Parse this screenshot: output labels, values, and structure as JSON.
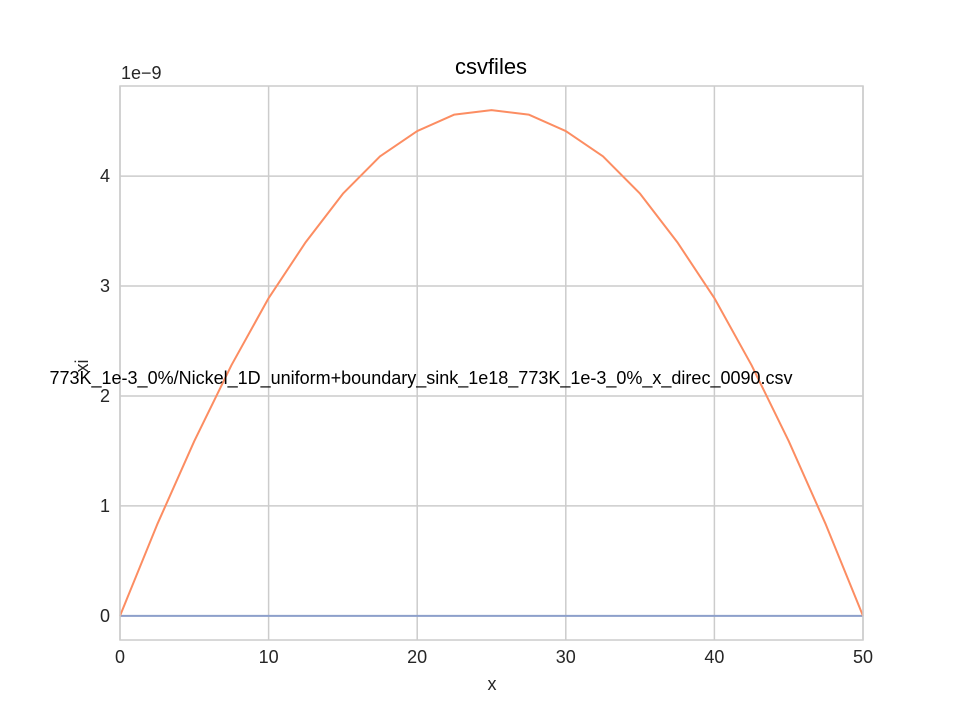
{
  "chart_data": {
    "type": "line",
    "title": "csvfiles",
    "xlabel": "x",
    "ylabel": "xi",
    "y_scale_label": "1e−9",
    "xlim": [
      0,
      50
    ],
    "ylim": [
      -0.22,
      4.82
    ],
    "grid": true,
    "legend_placement": "center",
    "x_ticks": [
      0,
      10,
      20,
      30,
      40,
      50
    ],
    "y_ticks": [
      0,
      1,
      2,
      3,
      4
    ],
    "x_tick_labels": [
      "0",
      "10",
      "20",
      "30",
      "40",
      "50"
    ],
    "y_tick_labels": [
      "0",
      "1",
      "2",
      "3",
      "4"
    ],
    "series": [
      {
        "name": "773K_1e-3_0%/Nickel_1D_uniform+boundary_sink_1e18_773K_1e-3_0%_x_direc_0090.csv",
        "color": "#fc8d62",
        "x": [
          0,
          2.5,
          5,
          7.5,
          10,
          12.5,
          15,
          17.5,
          20,
          22.5,
          25,
          27.5,
          30,
          32.5,
          35,
          37.5,
          40,
          42.5,
          45,
          47.5,
          50
        ],
        "y": [
          0,
          0.83,
          1.59,
          2.28,
          2.89,
          3.4,
          3.84,
          4.18,
          4.41,
          4.56,
          4.6,
          4.56,
          4.41,
          4.18,
          3.84,
          3.4,
          2.89,
          2.28,
          1.59,
          0.83,
          0
        ]
      },
      {
        "name": "",
        "color": "#8da0cb",
        "x": [
          0,
          10,
          20,
          30,
          40,
          50
        ],
        "y": [
          0,
          0,
          0,
          0,
          0,
          0
        ]
      }
    ]
  }
}
